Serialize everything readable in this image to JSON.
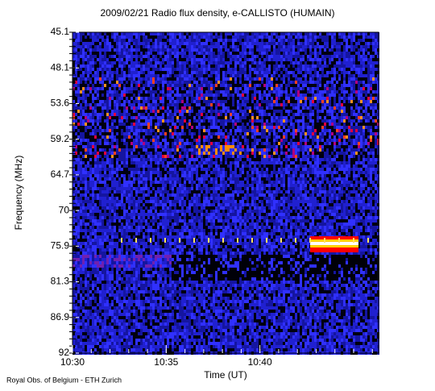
{
  "chart_data": {
    "type": "spectrogram",
    "title": "2009/02/21  Radio flux density, e-CALLISTO (HUMAIN)",
    "y_label": "Frequency (MHz)",
    "x_label": "Time (UT)",
    "footer": "Royal Obs. of Belgium - ETH Zurich",
    "ylim": [
      45.1,
      92.0
    ],
    "yticks": [
      45.1,
      48.1,
      53.6,
      59.2,
      64.7,
      70.0,
      75.9,
      81.3,
      86.9,
      92.0
    ],
    "y_inverted": true,
    "xlim": [
      "10:30:00",
      "10:46:20"
    ],
    "xticks": [
      "10:30",
      "10:35",
      "10:40"
    ]
  }
}
